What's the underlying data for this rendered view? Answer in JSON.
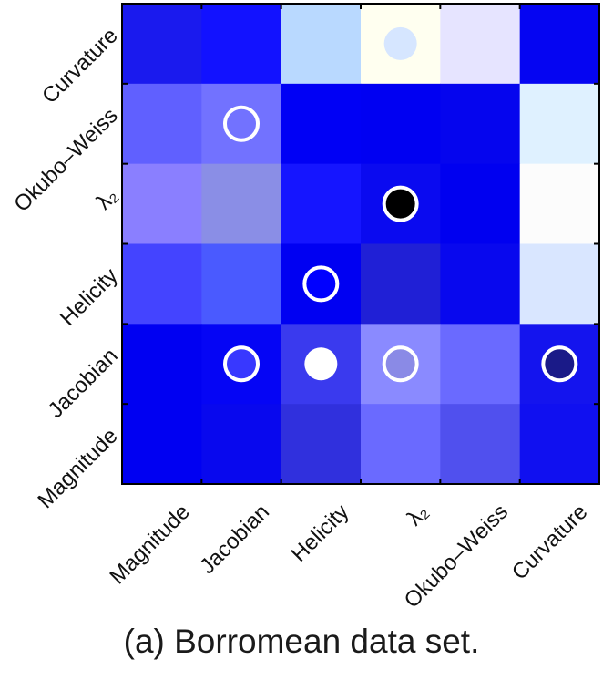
{
  "chart_data": {
    "type": "heatmap",
    "title": "",
    "caption": "(a) Borromean data set.",
    "x_tick_labels": [
      "Magnitude",
      "Jacobian",
      "Helicity",
      "λ₂",
      "Okubo–Weiss",
      "Curvature"
    ],
    "y_tick_labels": [
      "Curvature",
      "Okubo–Weiss",
      "λ₂",
      "Helicity",
      "Jacobian",
      "Magnitude"
    ],
    "rows_top_to_bottom": [
      "Curvature",
      "Okubo–Weiss",
      "λ₂",
      "Helicity",
      "Jacobian",
      "Magnitude"
    ],
    "cells": [
      [
        "#1a1aee",
        "#1212ff",
        "#b9d9ff",
        "#fffff0",
        "#e6e4ff",
        "#0505f2"
      ],
      [
        "#6060ff",
        "#7272ff",
        "#0000f5",
        "#0000f2",
        "#0505ee",
        "#dff1ff"
      ],
      [
        "#8a7fff",
        "#8a8ee6",
        "#1515ff",
        "#0a0af0",
        "#0000f0",
        "#fcfcfc"
      ],
      [
        "#4444ff",
        "#4a5aff",
        "#0000f2",
        "#2020d6",
        "#0808ee",
        "#d9e6ff"
      ],
      [
        "#0000f2",
        "#0505f5",
        "#3a3aee",
        "#8a8aff",
        "#6a6aff",
        "#1414ee"
      ],
      [
        "#0000f2",
        "#0808ee",
        "#3030dd",
        "#6a6aff",
        "#5050ee",
        "#1010f0"
      ]
    ],
    "markers": [
      {
        "x": "λ₂",
        "y": "Curvature",
        "fill": "#d6e6ff",
        "outline": false
      },
      {
        "x": "Jacobian",
        "y": "Okubo–Weiss",
        "fill": "none",
        "outline": true
      },
      {
        "x": "λ₂",
        "y": "λ₂",
        "fill": "#000000",
        "outline": true
      },
      {
        "x": "Helicity",
        "y": "Helicity",
        "fill": "#0000ff",
        "outline": true
      },
      {
        "x": "Jacobian",
        "y": "Jacobian",
        "fill": "#3838ff",
        "outline": true
      },
      {
        "x": "Helicity",
        "y": "Jacobian",
        "fill": "#ffffff",
        "outline": false
      },
      {
        "x": "λ₂",
        "y": "Jacobian",
        "fill": "#8a8ae6",
        "outline": true
      },
      {
        "x": "Curvature",
        "y": "Jacobian",
        "fill": "#1a1a88",
        "outline": true
      }
    ],
    "grid": false
  }
}
